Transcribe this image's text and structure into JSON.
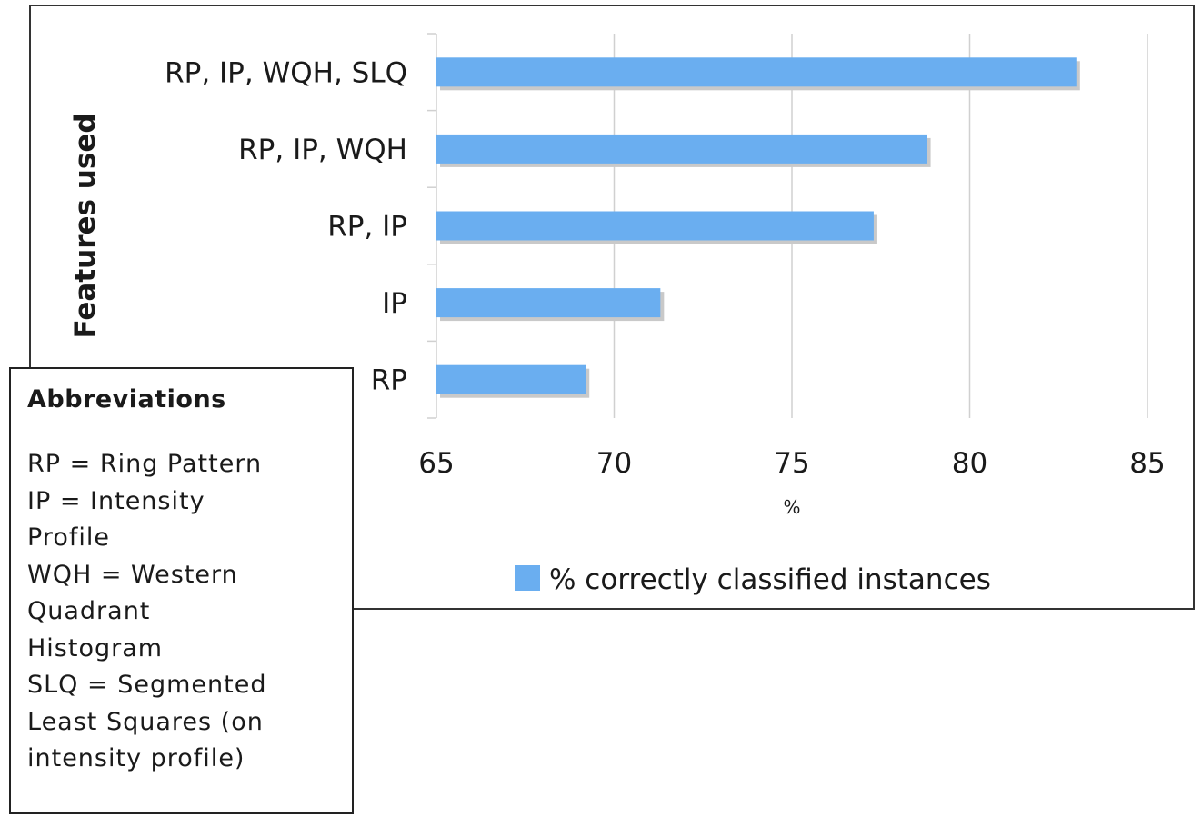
{
  "chart_data": {
    "type": "bar",
    "orientation": "horizontal",
    "categories": [
      "RP, IP, WQH, SLQ",
      "RP, IP, WQH",
      "RP, IP",
      "IP",
      "RP"
    ],
    "series": [
      {
        "name": "% correctly classified instances",
        "values": [
          83.0,
          78.8,
          77.3,
          71.3,
          69.2
        ]
      }
    ],
    "xlabel": "%",
    "ylabel": "Features used",
    "xlim": [
      65,
      85
    ],
    "xticks": [
      "65",
      "70",
      "75",
      "80",
      "85"
    ],
    "grid": true,
    "legend_position": "bottom",
    "bar_color": "#6aaef0",
    "bar_shadow_color": "#c9c9c9"
  },
  "abbreviations": {
    "title": "Abbreviations",
    "lines": [
      "RP = Ring Pattern",
      "IP = Intensity",
      "Profile",
      "WQH = Western",
      "Quadrant",
      "Histogram",
      "SLQ = Segmented",
      "Least Squares (on",
      "intensity profile)"
    ]
  }
}
